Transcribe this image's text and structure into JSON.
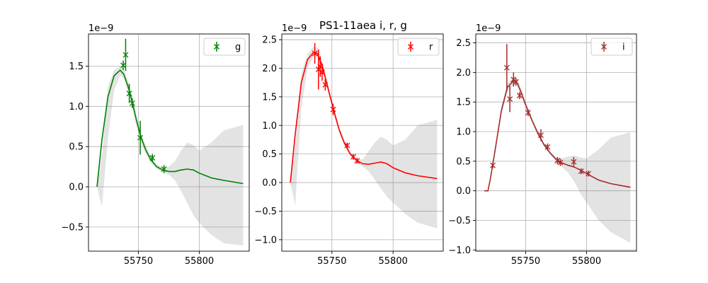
{
  "figure": {
    "title": "PS1-11aea  i, r, g"
  },
  "chart_data": [
    {
      "type": "line",
      "band": "g",
      "legend": "g",
      "color": "#008000",
      "offset_text": "1e−9",
      "xlim": [
        55709,
        55841
      ],
      "ylim": [
        -0.8,
        1.9
      ],
      "xticks": [
        55750,
        55800
      ],
      "yticks": [
        -0.5,
        0.0,
        0.5,
        1.0,
        1.5
      ],
      "ytick_labels": [
        "−0.5",
        "0.0",
        "0.5",
        "1.0",
        "1.5"
      ],
      "grid": true,
      "legend_position": "top-right",
      "model": {
        "x": [
          55716,
          55720,
          55725,
          55730,
          55735,
          55738,
          55742,
          55745,
          55748,
          55752,
          55756,
          55760,
          55765,
          55770,
          55775,
          55780,
          55785,
          55790,
          55795,
          55800,
          55810,
          55820,
          55836
        ],
        "y": [
          0.0,
          0.58,
          1.12,
          1.38,
          1.45,
          1.4,
          1.22,
          1.05,
          0.85,
          0.62,
          0.46,
          0.34,
          0.25,
          0.21,
          0.19,
          0.19,
          0.21,
          0.22,
          0.21,
          0.17,
          0.11,
          0.08,
          0.04
        ],
        "lower": [
          0.0,
          -0.25,
          0.6,
          1.2,
          1.38,
          1.35,
          1.15,
          0.98,
          0.78,
          0.56,
          0.41,
          0.3,
          0.22,
          0.18,
          0.15,
          0.08,
          -0.05,
          -0.2,
          -0.35,
          -0.45,
          -0.6,
          -0.7,
          -0.73
        ],
        "upper": [
          0.0,
          0.38,
          1.25,
          1.45,
          1.5,
          1.46,
          1.29,
          1.12,
          0.92,
          0.68,
          0.51,
          0.38,
          0.28,
          0.24,
          0.25,
          0.32,
          0.45,
          0.55,
          0.52,
          0.45,
          0.55,
          0.7,
          0.77
        ]
      },
      "observations": [
        {
          "x": 55737.5,
          "y": 1.51,
          "err": 0.06
        },
        {
          "x": 55739.5,
          "y": 1.64,
          "err": 0.2
        },
        {
          "x": 55742.5,
          "y": 1.16,
          "err": 0.12
        },
        {
          "x": 55745.0,
          "y": 1.04,
          "err": 0.06
        },
        {
          "x": 55751.5,
          "y": 0.61,
          "err": 0.21
        },
        {
          "x": 55761.5,
          "y": 0.36,
          "err": 0.05
        },
        {
          "x": 55771.0,
          "y": 0.22,
          "err": 0.05
        }
      ]
    },
    {
      "type": "line",
      "band": "r",
      "legend": "r",
      "color": "#ff0000",
      "offset_text": "1e−9",
      "xlim": [
        55709,
        55841
      ],
      "ylim": [
        -1.2,
        2.6
      ],
      "xticks": [
        55750,
        55800
      ],
      "yticks": [
        -1.0,
        -0.5,
        0.0,
        0.5,
        1.0,
        1.5,
        2.0,
        2.5
      ],
      "ytick_labels": [
        "−1.0",
        "−0.5",
        "0.0",
        "0.5",
        "1.0",
        "1.5",
        "2.0",
        "2.5"
      ],
      "grid": true,
      "legend_position": "top-right",
      "model": {
        "x": [
          55716,
          55720,
          55725,
          55730,
          55735,
          55738,
          55742,
          55745,
          55748,
          55752,
          55756,
          55760,
          55765,
          55770,
          55775,
          55780,
          55785,
          55790,
          55795,
          55800,
          55810,
          55820,
          55836
        ],
        "y": [
          0.0,
          0.85,
          1.75,
          2.15,
          2.28,
          2.26,
          2.05,
          1.8,
          1.55,
          1.22,
          0.92,
          0.7,
          0.5,
          0.39,
          0.33,
          0.32,
          0.34,
          0.36,
          0.33,
          0.26,
          0.17,
          0.12,
          0.07
        ],
        "lower": [
          0.0,
          -0.4,
          1.3,
          2.0,
          2.2,
          2.2,
          1.98,
          1.73,
          1.48,
          1.16,
          0.87,
          0.65,
          0.46,
          0.35,
          0.28,
          0.2,
          0.05,
          -0.1,
          -0.25,
          -0.35,
          -0.55,
          -0.7,
          -0.8
        ],
        "upper": [
          0.0,
          0.65,
          1.9,
          2.25,
          2.38,
          2.36,
          2.12,
          1.87,
          1.62,
          1.28,
          0.97,
          0.75,
          0.54,
          0.43,
          0.4,
          0.55,
          0.7,
          0.8,
          0.75,
          0.65,
          0.75,
          1.0,
          1.1
        ]
      },
      "observations": [
        {
          "x": 55736.0,
          "y": 2.26,
          "err": 0.18
        },
        {
          "x": 55739.0,
          "y": 1.98,
          "err": 0.35
        },
        {
          "x": 55740.5,
          "y": 2.03,
          "err": 0.18
        },
        {
          "x": 55742.0,
          "y": 1.93,
          "err": 0.15
        },
        {
          "x": 55744.5,
          "y": 1.71,
          "err": 0.1
        },
        {
          "x": 55751.0,
          "y": 1.28,
          "err": 0.1
        },
        {
          "x": 55762.5,
          "y": 0.65,
          "err": 0.05
        },
        {
          "x": 55767.5,
          "y": 0.45,
          "err": 0.05
        },
        {
          "x": 55770.5,
          "y": 0.38,
          "err": 0.05
        }
      ]
    },
    {
      "type": "line",
      "band": "i",
      "legend": "i",
      "color": "#a52a2a",
      "offset_text": "1e−9",
      "xlim": [
        55709,
        55841
      ],
      "ylim": [
        -1.02,
        2.65
      ],
      "xticks": [
        55750,
        55800
      ],
      "yticks": [
        -1.0,
        -0.5,
        0.0,
        0.5,
        1.0,
        1.5,
        2.0,
        2.5
      ],
      "ytick_labels": [
        "−1.0",
        "−0.5",
        "0.0",
        "0.5",
        "1.0",
        "1.5",
        "2.0",
        "2.5"
      ],
      "grid": true,
      "legend_position": "top-right",
      "model": {
        "x": [
          55716,
          55719,
          55721,
          55725,
          55730,
          55735,
          55740,
          55743,
          55746,
          55750,
          55755,
          55760,
          55765,
          55770,
          55775,
          55780,
          55785,
          55790,
          55795,
          55800,
          55810,
          55820,
          55836
        ],
        "y": [
          0.0,
          0.0,
          0.2,
          0.7,
          1.35,
          1.75,
          1.86,
          1.82,
          1.68,
          1.45,
          1.2,
          0.97,
          0.78,
          0.64,
          0.53,
          0.47,
          0.43,
          0.4,
          0.35,
          0.29,
          0.18,
          0.12,
          0.06
        ],
        "lower": [
          0.0,
          0.0,
          0.18,
          0.65,
          1.28,
          1.68,
          1.79,
          1.75,
          1.62,
          1.4,
          1.16,
          0.93,
          0.75,
          0.61,
          0.49,
          0.4,
          0.3,
          0.15,
          -0.05,
          -0.2,
          -0.5,
          -0.7,
          -0.88
        ],
        "upper": [
          0.0,
          0.0,
          0.22,
          0.75,
          1.42,
          1.82,
          1.93,
          1.89,
          1.74,
          1.5,
          1.24,
          1.01,
          0.81,
          0.67,
          0.57,
          0.55,
          0.58,
          0.6,
          0.56,
          0.55,
          0.7,
          0.9,
          0.99
        ]
      },
      "observations": [
        {
          "x": 55723.0,
          "y": 0.43,
          "err": 0.05
        },
        {
          "x": 55734.5,
          "y": 2.08,
          "err": 0.4
        },
        {
          "x": 55737.0,
          "y": 1.55,
          "err": 0.22
        },
        {
          "x": 55740.0,
          "y": 1.88,
          "err": 0.12
        },
        {
          "x": 55742.0,
          "y": 1.84,
          "err": 0.06
        },
        {
          "x": 55745.0,
          "y": 1.61,
          "err": 0.06
        },
        {
          "x": 55752.0,
          "y": 1.32,
          "err": 0.06
        },
        {
          "x": 55762.5,
          "y": 0.94,
          "err": 0.1
        },
        {
          "x": 55768.0,
          "y": 0.74,
          "err": 0.06
        },
        {
          "x": 55776.0,
          "y": 0.51,
          "err": 0.06
        },
        {
          "x": 55778.5,
          "y": 0.48,
          "err": 0.06
        },
        {
          "x": 55789.5,
          "y": 0.49,
          "err": 0.08
        },
        {
          "x": 55795.5,
          "y": 0.33,
          "err": 0.05
        },
        {
          "x": 55801.5,
          "y": 0.29,
          "err": 0.05
        }
      ]
    }
  ]
}
